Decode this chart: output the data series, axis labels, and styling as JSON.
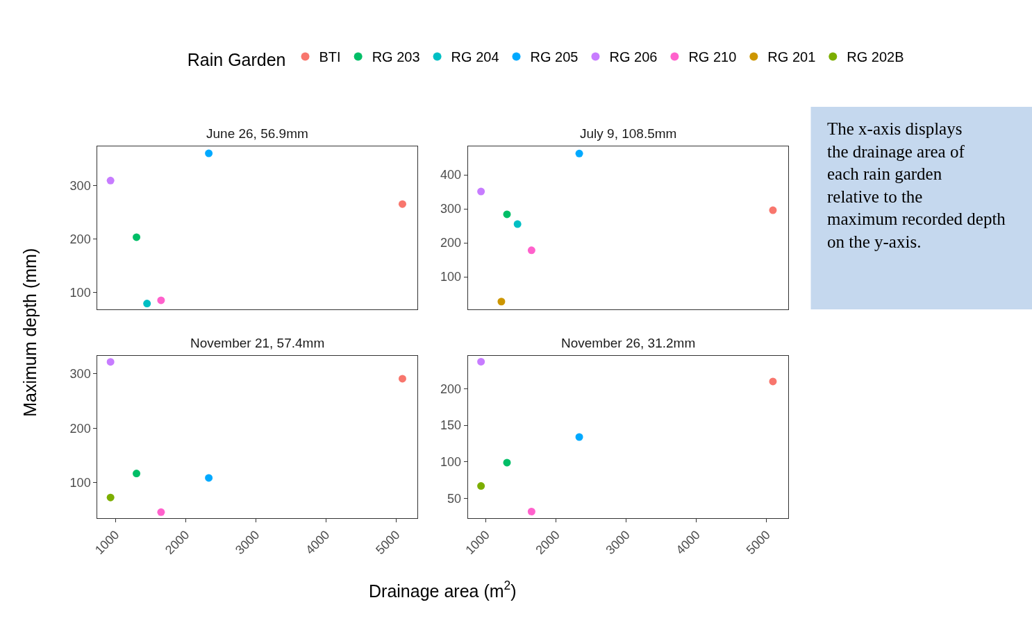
{
  "chart_data": [
    {
      "type": "scatter",
      "title": "June 26, 56.9mm",
      "ylabel": "Maximum depth (mm)",
      "legend_title": "Rain Garden",
      "legend": "top",
      "marker": "circle",
      "tick_labels": "y",
      "xlim": [
        744,
        5305
      ],
      "xticks": [
        1000,
        2000,
        3000,
        4000,
        5000
      ],
      "ylim": [
        68,
        373
      ],
      "yticks": [
        100,
        200,
        300
      ],
      "series": [
        {
          "name": "BTI",
          "color": "#f8766d",
          "x": [
            5090
          ],
          "values": [
            265
          ]
        },
        {
          "name": "RG 203",
          "color": "#00be67",
          "x": [
            1300
          ],
          "values": [
            203
          ]
        },
        {
          "name": "RG 204",
          "color": "#00bfc4",
          "x": [
            1450
          ],
          "values": [
            79
          ]
        },
        {
          "name": "RG 205",
          "color": "#00a9ff",
          "x": [
            2330
          ],
          "values": [
            360
          ]
        },
        {
          "name": "RG 206",
          "color": "#c77cff",
          "x": [
            930
          ],
          "values": [
            309
          ]
        },
        {
          "name": "RG 210",
          "color": "#ff61cc",
          "x": [
            1650
          ],
          "values": [
            85
          ]
        }
      ]
    },
    {
      "type": "scatter",
      "title": "July 9, 108.5mm",
      "marker": "circle",
      "tick_labels": "y",
      "xlim": [
        744,
        5305
      ],
      "xticks": [
        1000,
        2000,
        3000,
        4000,
        5000
      ],
      "ylim": [
        4,
        484
      ],
      "yticks": [
        100,
        200,
        300,
        400
      ],
      "series": [
        {
          "name": "BTI",
          "color": "#f8766d",
          "x": [
            5090
          ],
          "values": [
            296
          ]
        },
        {
          "name": "RG 201",
          "color": "#cd9600",
          "x": [
            1220
          ],
          "values": [
            27
          ]
        },
        {
          "name": "RG 203",
          "color": "#00be67",
          "x": [
            1300
          ],
          "values": [
            284
          ]
        },
        {
          "name": "RG 204",
          "color": "#00bfc4",
          "x": [
            1450
          ],
          "values": [
            255
          ]
        },
        {
          "name": "RG 205",
          "color": "#00a9ff",
          "x": [
            2330
          ],
          "values": [
            463
          ]
        },
        {
          "name": "RG 206",
          "color": "#c77cff",
          "x": [
            930
          ],
          "values": [
            351
          ]
        },
        {
          "name": "RG 210",
          "color": "#ff61cc",
          "x": [
            1650
          ],
          "values": [
            178
          ]
        }
      ]
    },
    {
      "type": "scatter",
      "title": "November 21, 57.4mm",
      "xlabel": "Drainage area (m$^{2}$)",
      "marker": "circle",
      "xlim": [
        744,
        5305
      ],
      "xticks": [
        1000,
        2000,
        3000,
        4000,
        5000
      ],
      "ylim": [
        35,
        333
      ],
      "yticks": [
        100,
        200,
        300
      ],
      "series": [
        {
          "name": "BTI",
          "color": "#f8766d",
          "x": [
            5090
          ],
          "values": [
            291
          ]
        },
        {
          "name": "RG 202B",
          "color": "#7cae00",
          "x": [
            930
          ],
          "values": [
            73
          ]
        },
        {
          "name": "RG 203",
          "color": "#00be67",
          "x": [
            1300
          ],
          "values": [
            117
          ]
        },
        {
          "name": "RG 205",
          "color": "#00a9ff",
          "x": [
            2330
          ],
          "values": [
            109
          ]
        },
        {
          "name": "RG 206",
          "color": "#c77cff",
          "x": [
            930
          ],
          "values": [
            322
          ]
        },
        {
          "name": "RG 210",
          "color": "#ff61cc",
          "x": [
            1650
          ],
          "values": [
            46
          ]
        }
      ]
    },
    {
      "type": "scatter",
      "title": "November 26, 31.2mm",
      "marker": "circle",
      "xlim": [
        744,
        5305
      ],
      "xticks": [
        1000,
        2000,
        3000,
        4000,
        5000
      ],
      "ylim": [
        23,
        245
      ],
      "yticks": [
        50,
        100,
        150,
        200
      ],
      "series": [
        {
          "name": "BTI",
          "color": "#f8766d",
          "x": [
            5090
          ],
          "values": [
            210
          ]
        },
        {
          "name": "RG 202B",
          "color": "#7cae00",
          "x": [
            930
          ],
          "values": [
            67
          ]
        },
        {
          "name": "RG 203",
          "color": "#00be67",
          "x": [
            1300
          ],
          "values": [
            99
          ]
        },
        {
          "name": "RG 205",
          "color": "#00a9ff",
          "x": [
            2330
          ],
          "values": [
            134
          ]
        },
        {
          "name": "RG 206",
          "color": "#c77cff",
          "x": [
            930
          ],
          "values": [
            237
          ]
        },
        {
          "name": "RG 210",
          "color": "#ff61cc",
          "x": [
            1650
          ],
          "values": [
            32
          ]
        }
      ]
    },
    {
      "type": "other",
      "annotations": [
        "The x-axis displays the drainage area of each rain garden relative to the maximum recorded depth on the y-axis."
      ]
    }
  ]
}
